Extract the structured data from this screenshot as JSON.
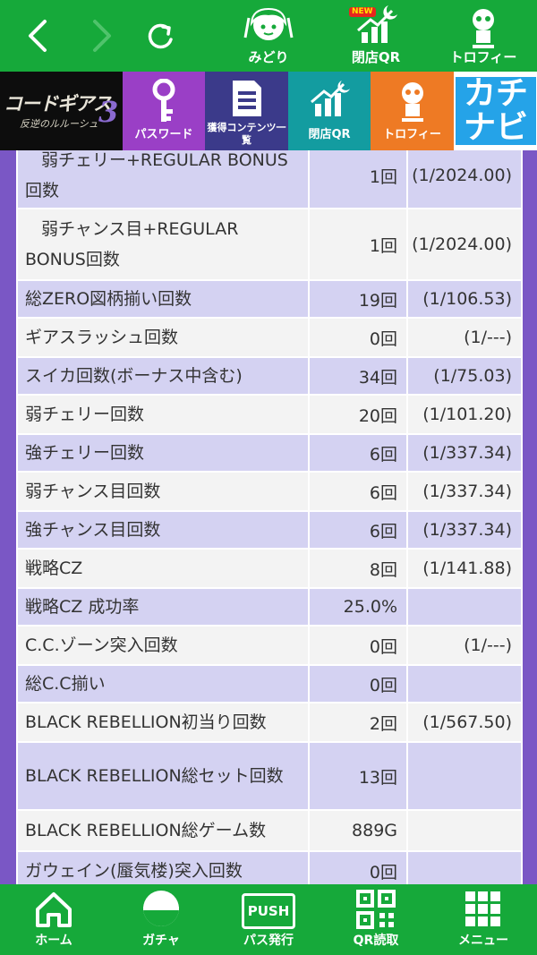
{
  "topbar": {
    "midori_label": "みどり",
    "qr_label": "閉店QR",
    "qr_badge": "NEW",
    "trophy_label": "トロフィー"
  },
  "subnav": {
    "logo_text": "コードギアス",
    "logo_sub": "反逆のルルーシュ",
    "logo_num": "3",
    "tiles": [
      {
        "label": "パスワード",
        "color": "#9a3fc6"
      },
      {
        "label": "獲得コンテンツ一覧",
        "color": "#3b3a8a"
      },
      {
        "label": "閉店QR",
        "color": "#139ca0"
      },
      {
        "label": "トロフィー",
        "color": "#ee7a24"
      }
    ],
    "kachinavi_text": "カチナビ"
  },
  "colors": {
    "green": "#16a93a",
    "purple_frame": "#7a57c5",
    "row_lavender": "#d4d2f2",
    "row_white": "#f3f3f3"
  },
  "table": {
    "rows": [
      {
        "name": "弱チェリー+REGULAR BONUS回数",
        "count": "1回",
        "prob": "(1/2024.00)"
      },
      {
        "name": "弱チャンス目+REGULAR BONUS回数",
        "count": "1回",
        "prob": "(1/2024.00)"
      },
      {
        "name": "総ZERO図柄揃い回数",
        "count": "19回",
        "prob": "(1/106.53)"
      },
      {
        "name": "ギアスラッシュ回数",
        "count": "0回",
        "prob": "(1/---)"
      },
      {
        "name": "スイカ回数(ボーナス中含む)",
        "count": "34回",
        "prob": "(1/75.03)"
      },
      {
        "name": "弱チェリー回数",
        "count": "20回",
        "prob": "(1/101.20)"
      },
      {
        "name": "強チェリー回数",
        "count": "6回",
        "prob": "(1/337.34)"
      },
      {
        "name": "弱チャンス目回数",
        "count": "6回",
        "prob": "(1/337.34)"
      },
      {
        "name": "強チャンス目回数",
        "count": "6回",
        "prob": "(1/337.34)"
      },
      {
        "name": "戦略CZ",
        "count": "8回",
        "prob": "(1/141.88)"
      },
      {
        "name": "戦略CZ 成功率",
        "count": "25.0%",
        "prob": ""
      },
      {
        "name": "C.C.ゾーン突入回数",
        "count": "0回",
        "prob": "(1/---)"
      },
      {
        "name": "総C.C揃い",
        "count": "0回",
        "prob": ""
      },
      {
        "name": "BLACK REBELLION初当り回数",
        "count": "2回",
        "prob": "(1/567.50)"
      },
      {
        "name": "BLACK REBELLION総セット回数",
        "count": "13回",
        "prob": ""
      },
      {
        "name": "BLACK REBELLION総ゲーム数",
        "count": "889G",
        "prob": ""
      },
      {
        "name": "ガウェイン(蜃気楼)突入回数",
        "count": "0回",
        "prob": ""
      }
    ]
  },
  "bottombar": {
    "home_label": "ホーム",
    "gacha_label": "ガチャ",
    "pass_label": "パス発行",
    "pass_icon_text": "PUSH",
    "qr_read_label": "QR読取",
    "menu_label": "メニュー"
  }
}
